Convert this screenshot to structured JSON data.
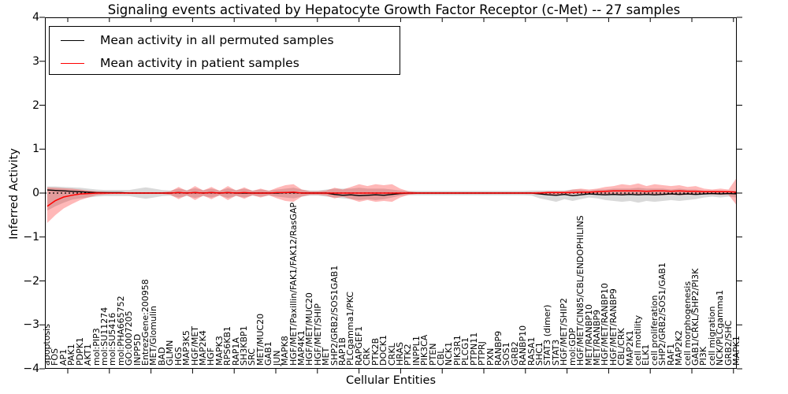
{
  "chart_data": {
    "type": "line",
    "title": "Signaling events activated by Hepatocyte Growth Factor Receptor (c-Met) -- 27 samples",
    "xlabel": "Cellular Entities",
    "ylabel": "Inferred Activity",
    "ylim": [
      -4,
      4
    ],
    "yticks": [
      4,
      3,
      2,
      1,
      0,
      -1,
      -2,
      -3,
      -4
    ],
    "ytick_labels": [
      "4",
      "3",
      "2",
      "1",
      "0",
      "−1",
      "−2",
      "−3",
      "−4"
    ],
    "grid": false,
    "legend_position": "upper left",
    "zero_line": {
      "value": 0,
      "style": "dotted",
      "color": "#000000"
    },
    "categories": [
      "apoptosis",
      "FOS",
      "AP1",
      "PAK1",
      "PDPK1",
      "AKT1",
      "mol:PIP3",
      "mol:SU11274",
      "mol:SU5416",
      "mol:PHA665752",
      "GO:0007205",
      "INPP5D",
      "EntrezGene:200958",
      "MET/Glomulin",
      "BAD",
      "GLMN",
      "HGS",
      "MAP3K5",
      "HGF/MET",
      "MAP2K4",
      "HGF",
      "MAPK3",
      "RPS6KB1",
      "RAP1A",
      "SH3KBP1",
      "SRC",
      "MET/MUC20",
      "GAB1",
      "JUN",
      "MAPK8",
      "HGF/MET/Paxillin/FAK1/FAK12/RasGAP",
      "MAP4K1",
      "HGF/MET/MUC20",
      "HGF/MET/SHIP",
      "MET",
      "SHP2/GRB2/SOS1GAB1",
      "RAP1B",
      "PLCgamma1/PKC",
      "RAPGEF1",
      "CRK",
      "PTK2B",
      "DOCK1",
      "CRKL",
      "HRAS",
      "PTK2",
      "INPPL1",
      "PIK3CA",
      "PTEN",
      "CBL",
      "NCK1",
      "PIK3R1",
      "PLCG1",
      "PTPN11",
      "PTPRJ",
      "PXN",
      "RANBP9",
      "SOS1",
      "GRB2",
      "RANBP10",
      "RASA1",
      "SHC1",
      "STAT3 (dimer)",
      "STAT3",
      "HGF/MET/SHIP2",
      "mol:GDP",
      "HGF/MET/CIN85/CBL/ENDOPHILINS",
      "MET/RANBP10",
      "MET/RANBP9",
      "HGF/MET/RANBP10",
      "HGF/MET/RANBP9",
      "CBL/CRK",
      "MAP2K1",
      "cell motility",
      "ELK1",
      "cell proliferation",
      "SHP2/GRB2/SOS1/GAB1",
      "RAF1",
      "MAP2K2",
      "cell morphogenesis",
      "GAB1/CRKL/SHP2/PI3K",
      "PI3K",
      "cell migration",
      "NCK/PLCgamma1",
      "GRB2/SHC",
      "MAPK1"
    ],
    "series": [
      {
        "name": "Mean activity in all permuted samples",
        "color": "#000000",
        "band_color": "rgba(0,0,0,0.15)",
        "values": [
          0.07,
          0.06,
          0.05,
          0.04,
          0.03,
          0.02,
          0.01,
          0.01,
          0.01,
          0.01,
          0.0,
          0.0,
          0.0,
          0.0,
          0.0,
          0.0,
          0.01,
          0.0,
          0.01,
          0.0,
          0.01,
          0.0,
          0.01,
          0.0,
          0.0,
          0.0,
          0.0,
          0.0,
          0.0,
          0.01,
          0.01,
          0.0,
          0.0,
          0.0,
          0.0,
          -0.03,
          -0.05,
          -0.04,
          -0.06,
          -0.05,
          -0.04,
          -0.05,
          -0.03,
          -0.01,
          0.0,
          0.0,
          0.0,
          0.0,
          0.0,
          0.0,
          0.0,
          0.0,
          0.0,
          0.0,
          0.0,
          0.0,
          0.0,
          0.0,
          0.0,
          0.0,
          -0.02,
          -0.04,
          -0.05,
          -0.03,
          -0.06,
          -0.04,
          -0.02,
          -0.03,
          -0.04,
          -0.03,
          -0.04,
          -0.03,
          -0.04,
          -0.03,
          -0.04,
          -0.03,
          -0.02,
          -0.03,
          -0.02,
          -0.03,
          -0.02,
          -0.01,
          -0.02,
          -0.01,
          -0.02
        ],
        "band_upper": [
          0.15,
          0.15,
          0.14,
          0.13,
          0.12,
          0.1,
          0.08,
          0.07,
          0.07,
          0.07,
          0.07,
          0.1,
          0.13,
          0.1,
          0.07,
          0.06,
          0.1,
          0.07,
          0.11,
          0.07,
          0.1,
          0.06,
          0.11,
          0.07,
          0.1,
          0.06,
          0.08,
          0.06,
          0.08,
          0.1,
          0.12,
          0.08,
          0.06,
          0.06,
          0.08,
          0.1,
          0.1,
          0.1,
          0.12,
          0.1,
          0.1,
          0.1,
          0.08,
          0.06,
          0.05,
          0.05,
          0.05,
          0.05,
          0.05,
          0.05,
          0.05,
          0.05,
          0.05,
          0.05,
          0.05,
          0.05,
          0.05,
          0.05,
          0.05,
          0.06,
          0.06,
          0.06,
          0.06,
          0.06,
          0.08,
          0.08,
          0.06,
          0.08,
          0.08,
          0.1,
          0.1,
          0.1,
          0.12,
          0.1,
          0.1,
          0.1,
          0.08,
          0.1,
          0.08,
          0.08,
          0.06,
          0.06,
          0.06,
          0.05,
          0.06
        ],
        "band_lower": [
          -0.4,
          -0.3,
          -0.22,
          -0.15,
          -0.12,
          -0.1,
          -0.08,
          -0.07,
          -0.07,
          -0.07,
          -0.07,
          -0.1,
          -0.13,
          -0.1,
          -0.07,
          -0.06,
          -0.1,
          -0.07,
          -0.11,
          -0.07,
          -0.1,
          -0.06,
          -0.11,
          -0.07,
          -0.1,
          -0.06,
          -0.08,
          -0.06,
          -0.08,
          -0.1,
          -0.12,
          -0.08,
          -0.06,
          -0.06,
          -0.08,
          -0.1,
          -0.12,
          -0.14,
          -0.16,
          -0.14,
          -0.16,
          -0.14,
          -0.1,
          -0.06,
          -0.05,
          -0.05,
          -0.05,
          -0.05,
          -0.05,
          -0.05,
          -0.05,
          -0.05,
          -0.05,
          -0.05,
          -0.05,
          -0.05,
          -0.05,
          -0.05,
          -0.05,
          -0.06,
          -0.12,
          -0.16,
          -0.2,
          -0.14,
          -0.18,
          -0.14,
          -0.1,
          -0.12,
          -0.16,
          -0.18,
          -0.2,
          -0.18,
          -0.22,
          -0.18,
          -0.2,
          -0.18,
          -0.16,
          -0.18,
          -0.16,
          -0.14,
          -0.1,
          -0.08,
          -0.1,
          -0.08,
          -0.1
        ]
      },
      {
        "name": "Mean activity in patient samples",
        "color": "#ff0000",
        "band_color": "rgba(255,0,0,0.28)",
        "values": [
          -0.3,
          -0.17,
          -0.09,
          -0.05,
          -0.02,
          -0.01,
          0.0,
          0.0,
          0.0,
          0.0,
          0.0,
          0.0,
          0.0,
          0.0,
          0.0,
          0.0,
          0.01,
          0.0,
          0.01,
          0.0,
          0.01,
          0.0,
          0.01,
          0.0,
          0.01,
          0.0,
          0.0,
          0.0,
          0.01,
          0.01,
          0.02,
          0.0,
          0.0,
          0.0,
          0.0,
          0.0,
          0.0,
          0.0,
          0.0,
          0.0,
          0.0,
          0.0,
          0.0,
          0.0,
          0.0,
          0.0,
          0.0,
          0.0,
          0.0,
          0.0,
          0.0,
          0.0,
          0.0,
          0.0,
          0.0,
          0.0,
          0.0,
          0.0,
          0.0,
          0.0,
          0.0,
          0.01,
          0.01,
          0.01,
          0.01,
          0.02,
          0.02,
          0.03,
          0.04,
          0.05,
          0.05,
          0.05,
          0.05,
          0.04,
          0.05,
          0.05,
          0.04,
          0.05,
          0.04,
          0.04,
          0.03,
          0.03,
          0.03,
          0.03,
          0.02
        ],
        "band_upper": [
          0.13,
          0.12,
          0.11,
          0.1,
          0.08,
          0.06,
          0.04,
          0.03,
          0.02,
          0.02,
          0.02,
          0.02,
          0.02,
          0.02,
          0.02,
          0.04,
          0.14,
          0.05,
          0.16,
          0.06,
          0.14,
          0.05,
          0.16,
          0.06,
          0.13,
          0.05,
          0.1,
          0.05,
          0.12,
          0.18,
          0.2,
          0.08,
          0.04,
          0.04,
          0.06,
          0.12,
          0.08,
          0.14,
          0.2,
          0.16,
          0.2,
          0.18,
          0.2,
          0.1,
          0.04,
          0.02,
          0.02,
          0.02,
          0.02,
          0.02,
          0.02,
          0.02,
          0.02,
          0.02,
          0.02,
          0.02,
          0.02,
          0.02,
          0.02,
          0.02,
          0.03,
          0.04,
          0.04,
          0.04,
          0.08,
          0.1,
          0.08,
          0.1,
          0.14,
          0.16,
          0.2,
          0.18,
          0.22,
          0.16,
          0.2,
          0.18,
          0.16,
          0.18,
          0.14,
          0.16,
          0.1,
          0.08,
          0.1,
          0.08,
          0.35
        ],
        "band_lower": [
          -0.68,
          -0.5,
          -0.35,
          -0.25,
          -0.16,
          -0.1,
          -0.05,
          -0.03,
          -0.02,
          -0.02,
          -0.02,
          -0.02,
          -0.02,
          -0.02,
          -0.02,
          -0.04,
          -0.14,
          -0.05,
          -0.16,
          -0.06,
          -0.14,
          -0.05,
          -0.16,
          -0.06,
          -0.13,
          -0.05,
          -0.1,
          -0.05,
          -0.12,
          -0.18,
          -0.2,
          -0.08,
          -0.04,
          -0.04,
          -0.06,
          -0.12,
          -0.08,
          -0.14,
          -0.2,
          -0.16,
          -0.2,
          -0.18,
          -0.2,
          -0.1,
          -0.04,
          -0.02,
          -0.02,
          -0.02,
          -0.02,
          -0.02,
          -0.02,
          -0.02,
          -0.02,
          -0.02,
          -0.02,
          -0.02,
          -0.02,
          -0.02,
          -0.02,
          -0.02,
          -0.03,
          -0.04,
          -0.04,
          -0.04,
          -0.02,
          -0.02,
          -0.02,
          -0.03,
          -0.03,
          -0.04,
          -0.05,
          -0.04,
          -0.05,
          -0.04,
          -0.05,
          -0.05,
          -0.04,
          -0.05,
          -0.04,
          -0.04,
          -0.03,
          -0.03,
          -0.04,
          -0.04,
          -0.28
        ]
      }
    ]
  }
}
